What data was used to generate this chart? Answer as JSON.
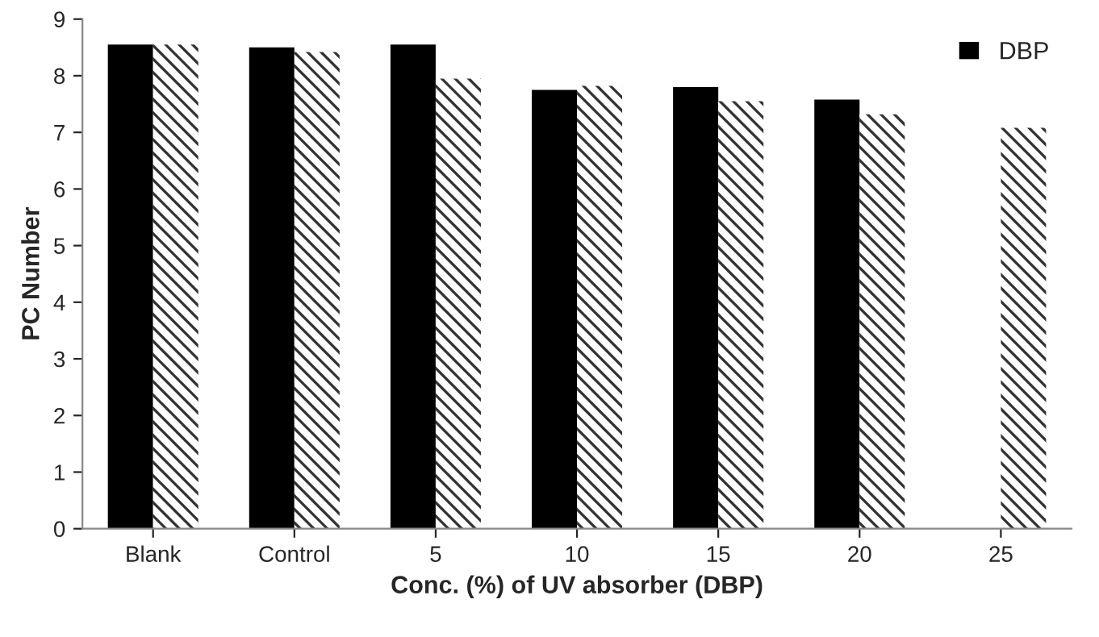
{
  "chart_data": {
    "type": "bar",
    "xlabel": "Conc. (%) of UV absorber (DBP)",
    "ylabel": "PC Number",
    "categories": [
      "Blank",
      "Control",
      "5",
      "10",
      "15",
      "20",
      "25"
    ],
    "series": [
      {
        "name": "DBP",
        "color": "#000000",
        "values": [
          8.55,
          8.5,
          8.55,
          7.75,
          7.8,
          7.58,
          null
        ]
      },
      {
        "color": "#333333",
        "values": [
          8.55,
          8.42,
          7.95,
          7.82,
          7.55,
          7.32,
          7.08
        ]
      }
    ],
    "ylim": [
      0,
      9
    ],
    "yticks": [
      0,
      1,
      2,
      3,
      4,
      5,
      6,
      7,
      8,
      9
    ],
    "legend": "top right",
    "grid": false
  }
}
